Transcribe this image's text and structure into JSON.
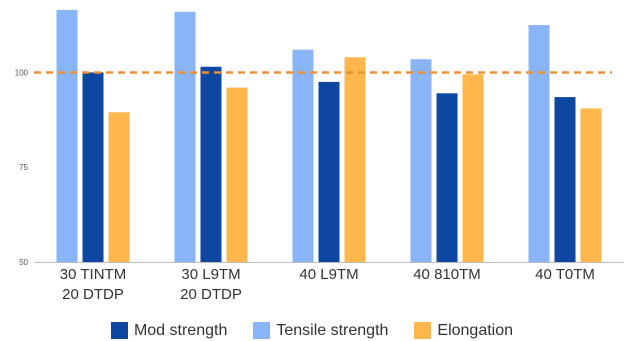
{
  "chart_data": {
    "type": "bar",
    "title": "",
    "xlabel": "",
    "ylabel": "",
    "ylim": [
      50,
      117
    ],
    "yticks": [
      50,
      75,
      100
    ],
    "categories": [
      [
        "30 TINTM",
        "20 DTDP"
      ],
      [
        "30 L9TM",
        "20 DTDP"
      ],
      [
        "40 L9TM"
      ],
      [
        "40 810TM"
      ],
      [
        "40 T0TM"
      ]
    ],
    "series": [
      {
        "name": "Tensile strength",
        "color": "#8ab4f8",
        "values": [
          116.5,
          116,
          106,
          103.5,
          112.5
        ]
      },
      {
        "name": "Mod strength",
        "color": "#0d47a1",
        "values": [
          100,
          101.5,
          97.5,
          94.5,
          93.5
        ]
      },
      {
        "name": "Elongation",
        "color": "#ffb74d",
        "values": [
          89.5,
          96,
          104,
          99.5,
          90.5
        ]
      }
    ],
    "reference_line": {
      "value": 100,
      "color": "#e8923a"
    },
    "grid": false,
    "legend": {
      "placement": "bottom",
      "entries": [
        {
          "label": "Mod strength",
          "color": "#0d47a1"
        },
        {
          "label": "Tensile strength",
          "color": "#8ab4f8"
        },
        {
          "label": "Elongation",
          "color": "#ffb74d"
        }
      ]
    }
  }
}
